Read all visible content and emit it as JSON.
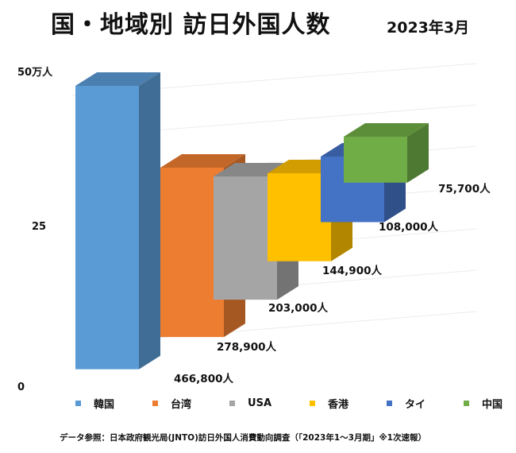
{
  "header": {
    "title": "国・地域別 訪日外国人数",
    "subtitle": "2023年3月"
  },
  "chart_data": {
    "type": "bar",
    "categories": [
      "韓国",
      "台湾",
      "USA",
      "香港",
      "タイ",
      "中国"
    ],
    "values": [
      466800,
      278900,
      203000,
      144900,
      108000,
      75700
    ],
    "data_labels": [
      "466,800人",
      "278,900人",
      "203,000人",
      "144,900人",
      "108,000人",
      "75,700人"
    ],
    "y_ticks": [
      "0",
      "25",
      "50万人"
    ],
    "ylim": [
      0,
      500000
    ],
    "grid": true,
    "legend": "bottom",
    "style": "3d-waterfall",
    "colors": [
      "#5B9BD5",
      "#ED7D31",
      "#A5A5A5",
      "#FFC000",
      "#4472C4",
      "#70AD47"
    ]
  },
  "source": "データ参照：日本政府観光局(JNTO)訪日外国人消費動向調査（「2023年1～3月期」※1次速報）"
}
